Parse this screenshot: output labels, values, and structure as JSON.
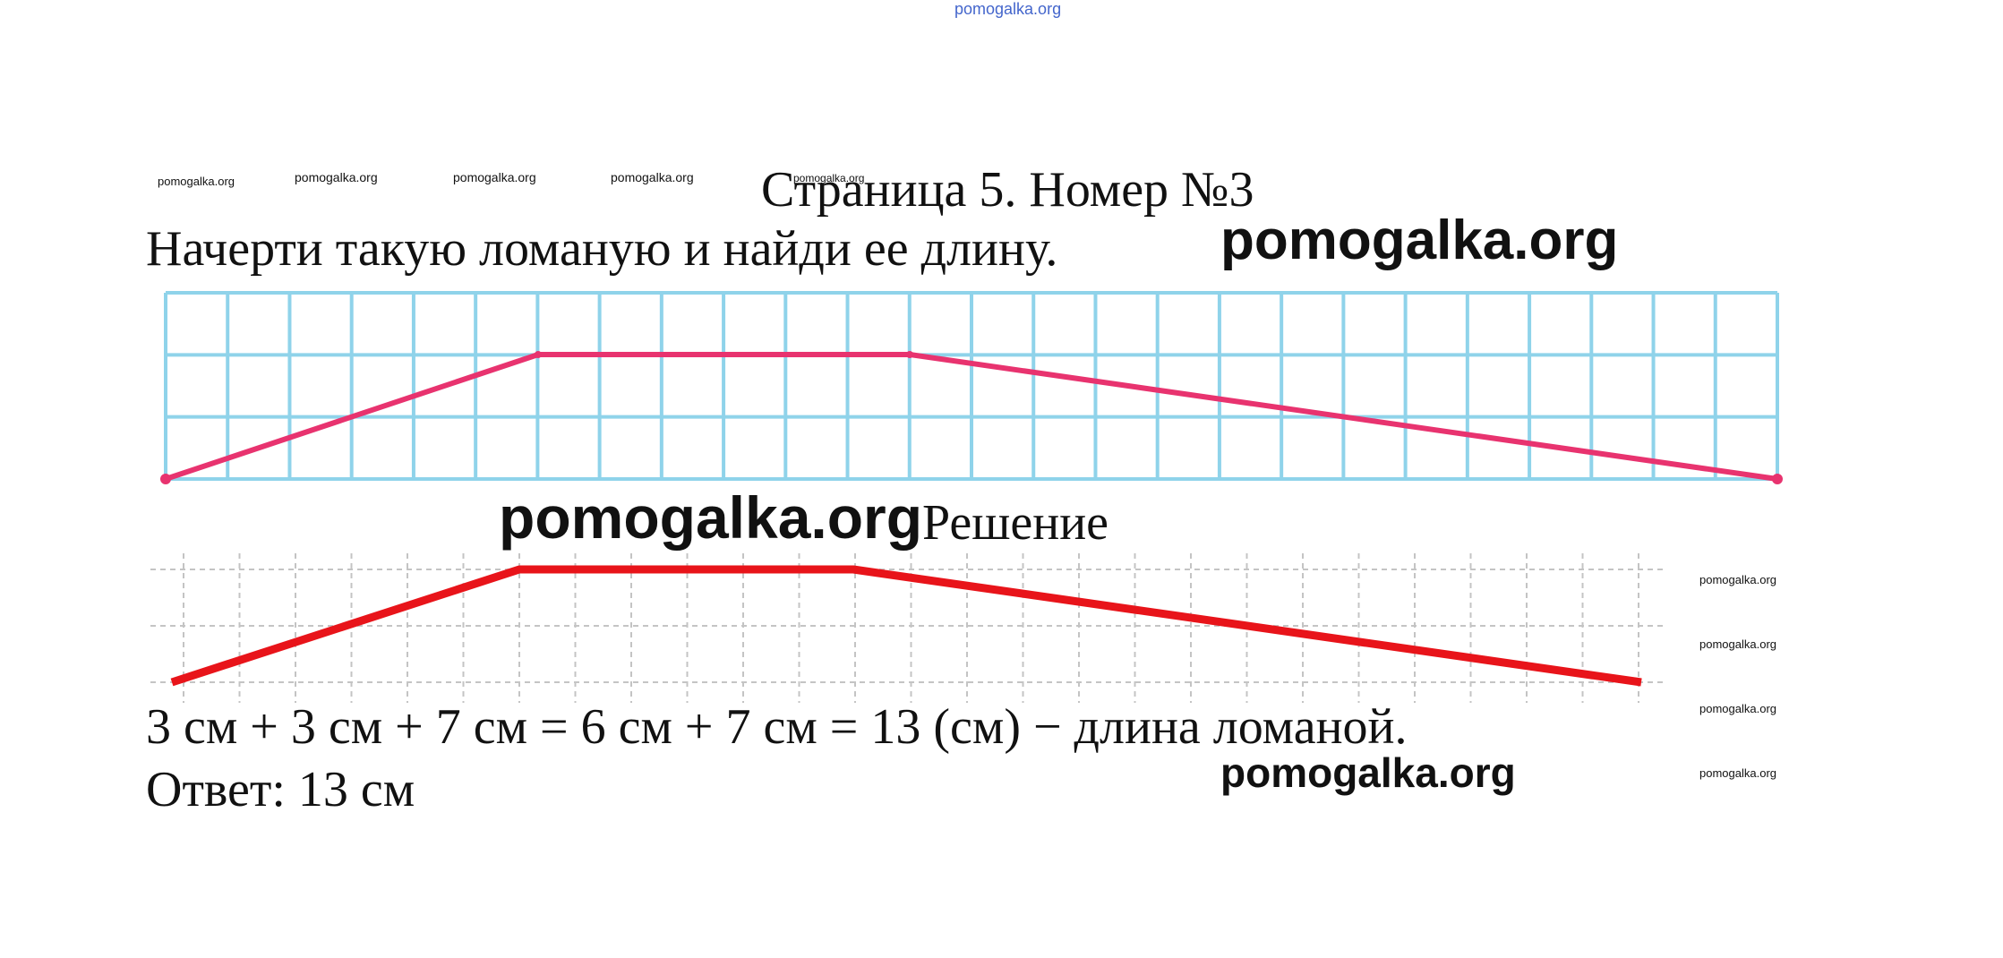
{
  "watermark": {
    "top": "pomogalka.org",
    "row": [
      "pomogalka.org",
      "pomogalka.org",
      "pomogalka.org",
      "pomogalka.org",
      "pomogalka.org"
    ],
    "big_1": "pomogalka.org",
    "big_2": "pomogalka.org",
    "big_3": "pomogalka.org",
    "right_column": [
      "pomogalka.org",
      "pomogalka.org",
      "pomogalka.org",
      "pomogalka.org"
    ]
  },
  "title": "Страница 5. Номер №3",
  "task": "Начерти такую ломаную и найди ее длину.",
  "solution_label": "Решение",
  "equation": "3 см + 3 см + 7 см = 6 см + 7 см = 13 (см) − длина ломаной.",
  "answer": "Ответ: 13 см",
  "colors": {
    "task_grid": "#8fd3ea",
    "task_line": "#e8336f",
    "solution_grid": "#c4c4c4",
    "solution_line": "#e8141a"
  }
}
